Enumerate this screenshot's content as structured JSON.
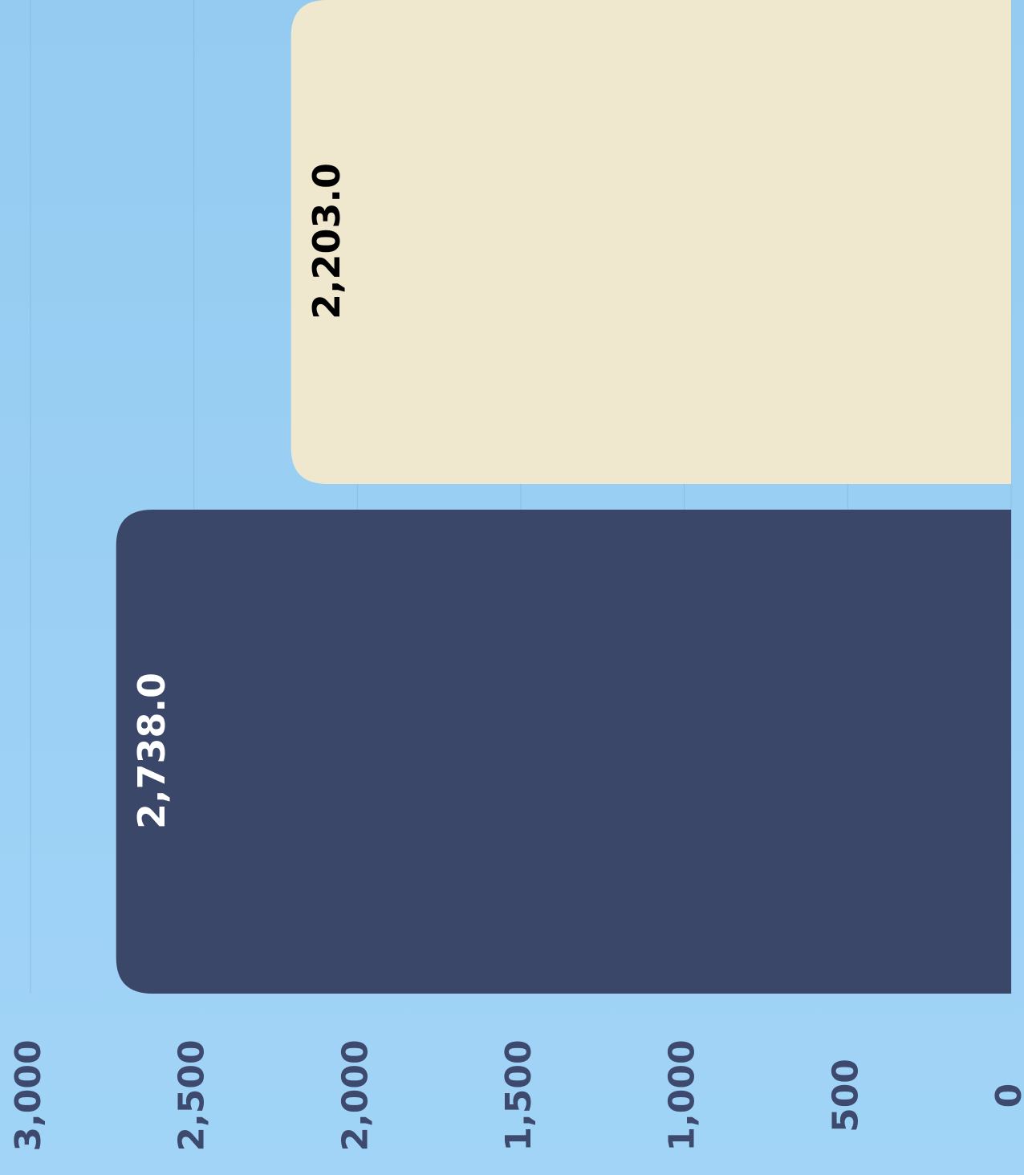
{
  "chart_data": {
    "type": "bar",
    "orientation": "horizontal",
    "reversed": true,
    "categories": [
      null,
      null
    ],
    "values": [
      2203,
      2738
    ],
    "value_labels": [
      "2,203.0",
      "2,738.0"
    ],
    "colors": [
      "#efe8cf",
      "#3a4769"
    ],
    "label_colors": [
      "#000000",
      "#ffffff"
    ],
    "ylim": [
      0,
      3000
    ],
    "yticks": [
      0,
      500,
      {
        "value": 1000,
        "label": "1,000"
      },
      {
        "value": 1500,
        "label": "1,500"
      },
      {
        "value": 2000,
        "label": "2,000"
      },
      {
        "value": 2500,
        "label": "2,500"
      },
      {
        "value": 3000,
        "label": "3,000"
      }
    ],
    "grid": true
  }
}
